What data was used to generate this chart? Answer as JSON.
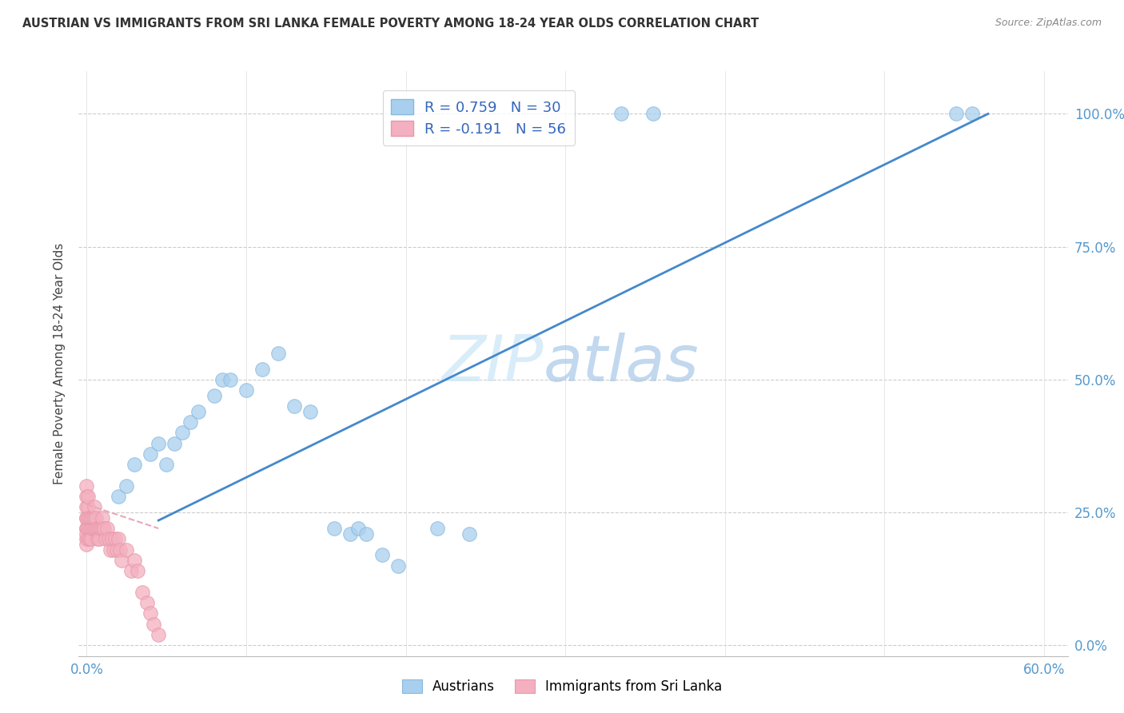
{
  "title": "AUSTRIAN VS IMMIGRANTS FROM SRI LANKA FEMALE POVERTY AMONG 18-24 YEAR OLDS CORRELATION CHART",
  "source": "Source: ZipAtlas.com",
  "ylabel": "Female Poverty Among 18-24 Year Olds",
  "watermark_zip": "ZIP",
  "watermark_atlas": "atlas",
  "legend1_label": "R = 0.759   N = 30",
  "legend2_label": "R = -0.191   N = 56",
  "blue_face": "#A8D0EE",
  "blue_edge": "#88B8E0",
  "pink_face": "#F4B0C0",
  "pink_edge": "#E898AA",
  "blue_line": "#4488CC",
  "pink_line": "#E8A8B8",
  "tick_color": "#5599CC",
  "austrians_x": [
    0.02,
    0.025,
    0.03,
    0.04,
    0.045,
    0.05,
    0.055,
    0.06,
    0.065,
    0.07,
    0.08,
    0.085,
    0.09,
    0.1,
    0.11,
    0.12,
    0.13,
    0.14,
    0.155,
    0.165,
    0.17,
    0.175,
    0.185,
    0.195,
    0.22,
    0.24,
    0.335,
    0.355,
    0.545,
    0.555
  ],
  "austrians_y": [
    0.28,
    0.3,
    0.34,
    0.36,
    0.38,
    0.34,
    0.38,
    0.4,
    0.42,
    0.44,
    0.47,
    0.5,
    0.5,
    0.48,
    0.52,
    0.55,
    0.45,
    0.44,
    0.22,
    0.21,
    0.22,
    0.21,
    0.17,
    0.15,
    0.22,
    0.21,
    1.0,
    1.0,
    1.0,
    1.0
  ],
  "srilanka_x": [
    0.0,
    0.0,
    0.0,
    0.0,
    0.0,
    0.0,
    0.0,
    0.0,
    0.0,
    0.0,
    0.001,
    0.001,
    0.001,
    0.001,
    0.001,
    0.002,
    0.002,
    0.002,
    0.003,
    0.003,
    0.003,
    0.004,
    0.004,
    0.005,
    0.005,
    0.005,
    0.006,
    0.006,
    0.007,
    0.007,
    0.008,
    0.008,
    0.009,
    0.01,
    0.01,
    0.011,
    0.012,
    0.013,
    0.014,
    0.015,
    0.016,
    0.017,
    0.018,
    0.019,
    0.02,
    0.021,
    0.022,
    0.025,
    0.028,
    0.03,
    0.032,
    0.035,
    0.038,
    0.04,
    0.042,
    0.045
  ],
  "srilanka_y": [
    0.22,
    0.24,
    0.26,
    0.28,
    0.3,
    0.2,
    0.22,
    0.24,
    0.19,
    0.21,
    0.22,
    0.24,
    0.26,
    0.2,
    0.28,
    0.22,
    0.24,
    0.2,
    0.22,
    0.24,
    0.2,
    0.22,
    0.24,
    0.22,
    0.24,
    0.26,
    0.22,
    0.24,
    0.22,
    0.2,
    0.22,
    0.2,
    0.22,
    0.22,
    0.24,
    0.22,
    0.2,
    0.22,
    0.2,
    0.18,
    0.2,
    0.18,
    0.2,
    0.18,
    0.2,
    0.18,
    0.16,
    0.18,
    0.14,
    0.16,
    0.14,
    0.1,
    0.08,
    0.06,
    0.04,
    0.02
  ],
  "blue_line_x": [
    0.045,
    0.565
  ],
  "blue_line_y": [
    0.235,
    1.0
  ],
  "pink_line_x": [
    0.0,
    0.045
  ],
  "pink_line_y": [
    0.265,
    0.22
  ],
  "xlim": [
    -0.005,
    0.615
  ],
  "ylim": [
    -0.02,
    1.08
  ],
  "xtick_pos": [
    0.0,
    0.1,
    0.2,
    0.3,
    0.4,
    0.5,
    0.6
  ],
  "xtick_labels": [
    "0.0%",
    "",
    "",
    "",
    "",
    "",
    "60.0%"
  ],
  "ytick_pos": [
    0.0,
    0.25,
    0.5,
    0.75,
    1.0
  ],
  "ytick_labels": [
    "0.0%",
    "25.0%",
    "50.0%",
    "75.0%",
    "100.0%"
  ]
}
